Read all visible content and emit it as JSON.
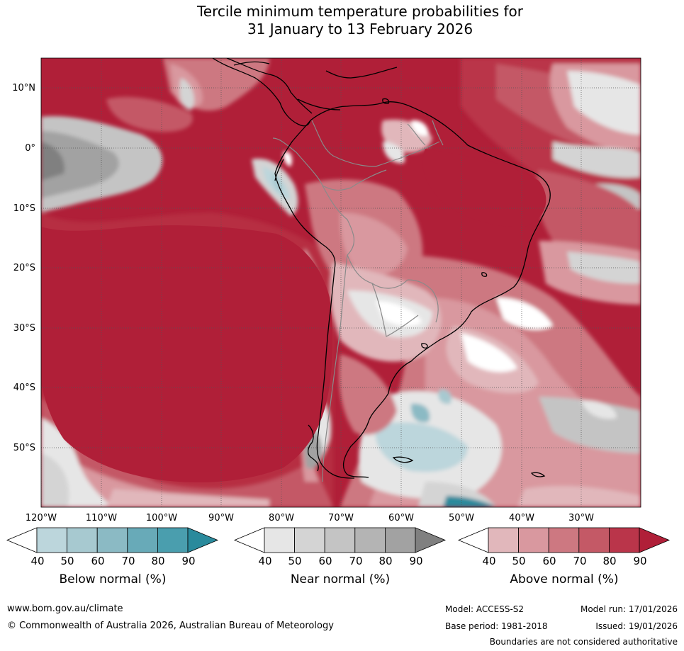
{
  "title": {
    "line1": "Tercile minimum temperature probabilities for",
    "line2": "31 January to 13 February 2026"
  },
  "map": {
    "lat_labels": [
      "10°N",
      "0°",
      "10°S",
      "20°S",
      "30°S",
      "40°S",
      "50°S"
    ],
    "lon_labels": [
      "120°W",
      "110°W",
      "100°W",
      "90°W",
      "80°W",
      "70°W",
      "60°W",
      "50°W",
      "40°W",
      "30°W"
    ]
  },
  "colorbars": [
    {
      "name": "below",
      "label": "Below normal (%)",
      "ticks": [
        "40",
        "50",
        "60",
        "70",
        "80",
        "90"
      ],
      "colors": [
        "#ffffff",
        "#bcd6dc",
        "#a7c9d0",
        "#8bbac4",
        "#68aab8",
        "#4a9eae",
        "#2a8a9c"
      ]
    },
    {
      "name": "near",
      "label": "Near normal (%)",
      "ticks": [
        "40",
        "50",
        "60",
        "70",
        "80",
        "90"
      ],
      "colors": [
        "#ffffff",
        "#e6e6e6",
        "#d4d4d4",
        "#c4c4c4",
        "#b4b4b4",
        "#a2a2a2",
        "#808080"
      ]
    },
    {
      "name": "above",
      "label": "Above normal (%)",
      "ticks": [
        "40",
        "50",
        "60",
        "70",
        "80",
        "90"
      ],
      "colors": [
        "#ffffff",
        "#e1b7bb",
        "#d9989f",
        "#cd7881",
        "#c45966",
        "#ba354a",
        "#b01f38"
      ]
    }
  ],
  "footer": {
    "website": "www.bom.gov.au/climate",
    "copyright": "© Commonwealth of Australia 2026, Australian Bureau of Meteorology",
    "model": "Model: ACCESS-S2",
    "model_run": "Model run: 17/01/2026",
    "base_period": "Base period: 1981-2018",
    "issued": "Issued: 19/01/2026",
    "disclaimer": "Boundaries are not considered authoritative"
  }
}
